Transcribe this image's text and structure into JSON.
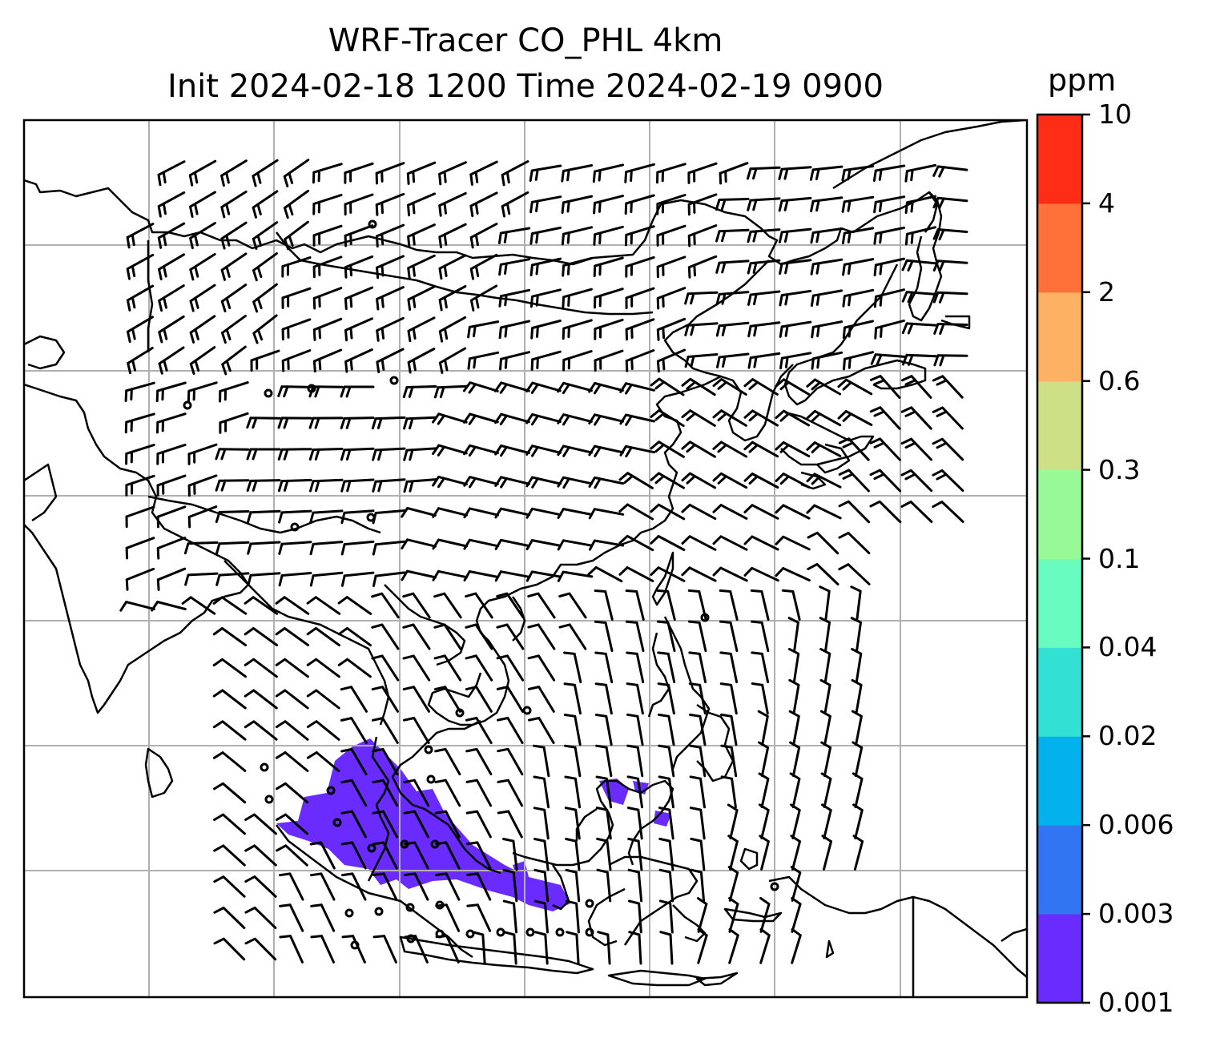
{
  "title": {
    "line1": "WRF-Tracer CO_PHL 4km",
    "line2": "Init 2024-02-18 1200 Time 2024-02-19 0900"
  },
  "colorbar": {
    "unit": "ppm",
    "ticks": [
      "0.001",
      "0.003",
      "0.006",
      "0.02",
      "0.04",
      "0.1",
      "0.3",
      "0.6",
      "2",
      "4",
      "10"
    ],
    "colors": [
      "#6a2bff",
      "#3275f2",
      "#03b2ec",
      "#33e0d4",
      "#67fbc0",
      "#98fa97",
      "#cee086",
      "#fdb163",
      "#ff7139",
      "#ff2c16"
    ]
  },
  "map": {
    "gridlines": true,
    "plume_level": "0.001",
    "plume_color": "#6a2bff"
  }
}
